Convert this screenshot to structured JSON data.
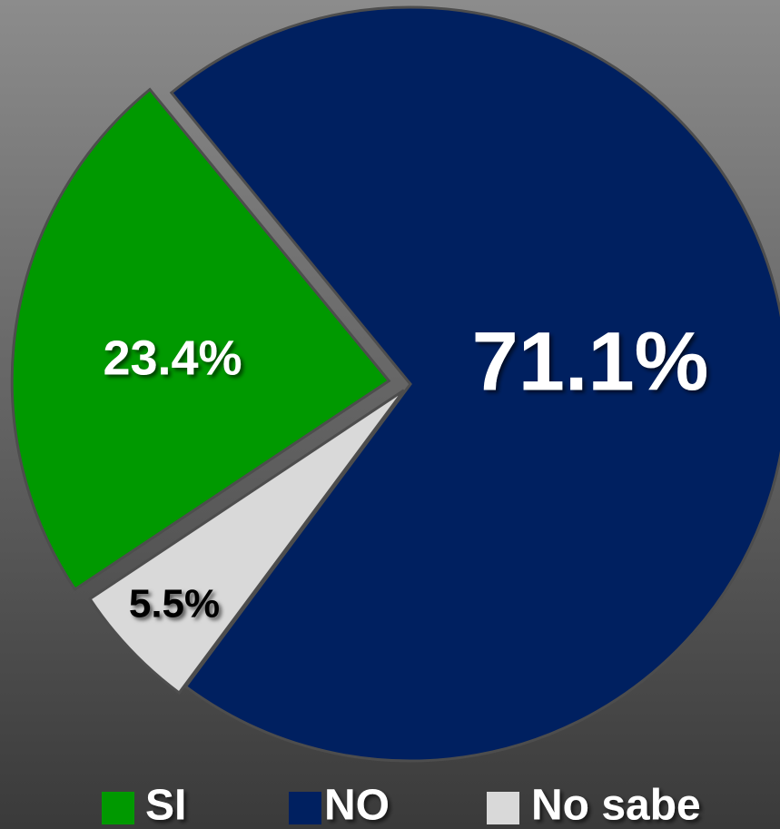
{
  "chart_data": {
    "type": "pie",
    "categories": [
      "SI",
      "NO",
      "No sabe"
    ],
    "values": [
      23.4,
      71.1,
      5.5
    ],
    "value_labels": [
      "23.4%",
      "71.1%",
      "5.5%"
    ],
    "colors": [
      "#009900",
      "#002060",
      "#d9d9d9"
    ],
    "legend": "bottom"
  }
}
